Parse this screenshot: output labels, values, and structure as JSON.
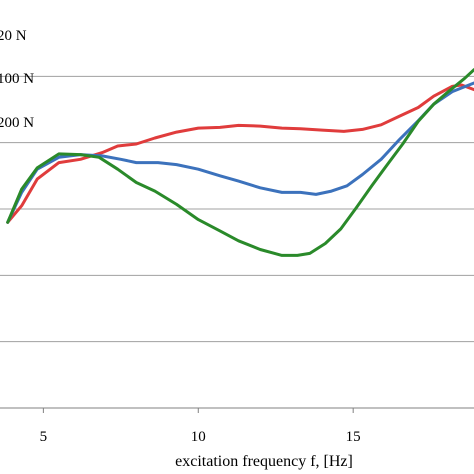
{
  "chart_data": {
    "type": "line",
    "title": "",
    "xlabel": "excitation frequency f, [Hz]",
    "ylabel": "",
    "xlim": [
      3.6,
      18.9
    ],
    "ylim": [
      0,
      6
    ],
    "x_ticks": [
      "5",
      "10",
      "15"
    ],
    "x_tick_values": [
      5,
      10,
      15
    ],
    "grid": "horizontal",
    "gridline_values": [
      1,
      2,
      3,
      4,
      5
    ],
    "legend_labels": [
      "20 N",
      "100 N",
      "200 N"
    ],
    "series": [
      {
        "color": "#e03c3c",
        "points": [
          [
            3.85,
            2.8
          ],
          [
            4.3,
            3.05
          ],
          [
            4.8,
            3.45
          ],
          [
            5.5,
            3.7
          ],
          [
            6.2,
            3.75
          ],
          [
            6.9,
            3.85
          ],
          [
            7.4,
            3.95
          ],
          [
            8.0,
            3.98
          ],
          [
            8.6,
            4.07
          ],
          [
            9.3,
            4.16
          ],
          [
            10.0,
            4.22
          ],
          [
            10.7,
            4.23
          ],
          [
            11.3,
            4.26
          ],
          [
            12.0,
            4.25
          ],
          [
            12.7,
            4.22
          ],
          [
            13.3,
            4.21
          ],
          [
            14.0,
            4.19
          ],
          [
            14.7,
            4.17
          ],
          [
            15.3,
            4.2
          ],
          [
            15.9,
            4.27
          ],
          [
            16.5,
            4.4
          ],
          [
            17.1,
            4.53
          ],
          [
            17.6,
            4.7
          ],
          [
            18.2,
            4.85
          ],
          [
            18.5,
            4.87
          ],
          [
            18.9,
            4.8
          ]
        ]
      },
      {
        "color": "#3c72bc",
        "points": [
          [
            3.85,
            2.8
          ],
          [
            4.3,
            3.25
          ],
          [
            4.8,
            3.6
          ],
          [
            5.5,
            3.78
          ],
          [
            6.2,
            3.82
          ],
          [
            6.9,
            3.8
          ],
          [
            7.5,
            3.75
          ],
          [
            8.0,
            3.7
          ],
          [
            8.7,
            3.7
          ],
          [
            9.3,
            3.67
          ],
          [
            10.0,
            3.6
          ],
          [
            10.7,
            3.5
          ],
          [
            11.3,
            3.42
          ],
          [
            12.0,
            3.32
          ],
          [
            12.7,
            3.25
          ],
          [
            13.3,
            3.25
          ],
          [
            13.8,
            3.22
          ],
          [
            14.3,
            3.27
          ],
          [
            14.8,
            3.35
          ],
          [
            15.3,
            3.52
          ],
          [
            15.9,
            3.75
          ],
          [
            16.5,
            4.05
          ],
          [
            17.1,
            4.33
          ],
          [
            17.6,
            4.58
          ],
          [
            18.2,
            4.77
          ],
          [
            18.9,
            4.9
          ]
        ]
      },
      {
        "color": "#2a8a2a",
        "points": [
          [
            3.85,
            2.8
          ],
          [
            4.3,
            3.3
          ],
          [
            4.8,
            3.62
          ],
          [
            5.5,
            3.83
          ],
          [
            6.2,
            3.82
          ],
          [
            6.8,
            3.78
          ],
          [
            7.4,
            3.6
          ],
          [
            8.0,
            3.4
          ],
          [
            8.6,
            3.27
          ],
          [
            9.3,
            3.07
          ],
          [
            10.0,
            2.84
          ],
          [
            10.7,
            2.67
          ],
          [
            11.3,
            2.52
          ],
          [
            12.0,
            2.39
          ],
          [
            12.7,
            2.3
          ],
          [
            13.2,
            2.3
          ],
          [
            13.6,
            2.33
          ],
          [
            14.1,
            2.48
          ],
          [
            14.6,
            2.7
          ],
          [
            15.1,
            3.02
          ],
          [
            15.6,
            3.35
          ],
          [
            16.1,
            3.67
          ],
          [
            16.6,
            3.98
          ],
          [
            17.1,
            4.32
          ],
          [
            17.6,
            4.58
          ],
          [
            18.1,
            4.78
          ],
          [
            18.6,
            4.97
          ],
          [
            18.9,
            5.1
          ]
        ]
      }
    ]
  }
}
